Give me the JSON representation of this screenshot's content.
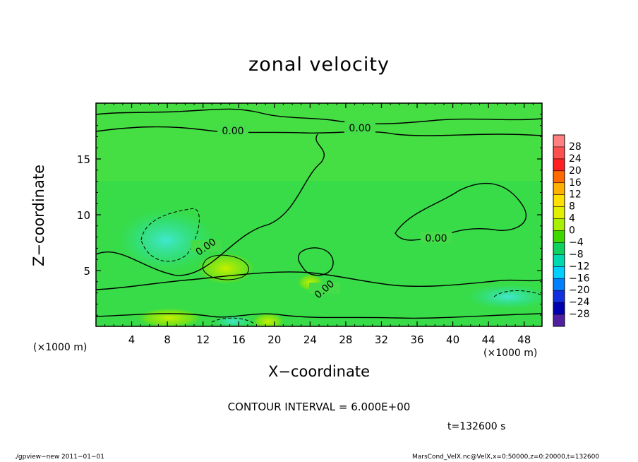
{
  "chart_data": {
    "type": "heatmap",
    "title": "zonal velocity",
    "xlabel": "X−coordinate",
    "ylabel": "Z−coordinate",
    "x_unit_left": "(×1000 m)",
    "x_unit_right": "(×1000 m)",
    "xlim": [
      0,
      50
    ],
    "ylim": [
      0,
      20
    ],
    "x_ticks": [
      4,
      8,
      12,
      16,
      20,
      24,
      28,
      32,
      36,
      40,
      44,
      48
    ],
    "y_ticks": [
      5,
      10,
      15
    ],
    "contour_labels": [
      "0.00",
      "0.00",
      "0.00",
      "0.00",
      "0.00"
    ],
    "colorbar": {
      "levels": [
        -28,
        -24,
        -20,
        -16,
        -12,
        -8,
        -4,
        0,
        4,
        8,
        12,
        16,
        20,
        24,
        28
      ],
      "labels": [
        "28",
        "24",
        "20",
        "16",
        "12",
        "8",
        "4",
        "0",
        "−4",
        "−8",
        "−12",
        "−16",
        "−20",
        "−24",
        "−28"
      ],
      "colors": [
        "#ff8080",
        "#ff5050",
        "#ff2020",
        "#ff6a00",
        "#ffb000",
        "#ffe000",
        "#e0f000",
        "#a8f000",
        "#3cd800",
        "#10d060",
        "#00d8b0",
        "#00d0ff",
        "#0080ff",
        "#1030e0",
        "#0000b0",
        "#5020a0"
      ]
    },
    "contour_interval": "CONTOUR INTERVAL = 6.000E+00",
    "time": "t=132600 s"
  },
  "footer": {
    "left": "./gpview−new  2011−01−01",
    "right": "MarsCond_VelX.nc@VelX,x=0:50000,z=0:20000,t=132600"
  }
}
